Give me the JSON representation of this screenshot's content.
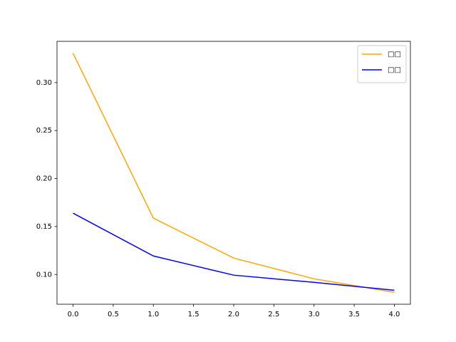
{
  "chart_data": {
    "type": "line",
    "x": [
      0,
      1,
      2,
      3,
      4
    ],
    "series": [
      {
        "name": "□□",
        "color": "orange",
        "values": [
          0.3305,
          0.1587,
          0.1171,
          0.0955,
          0.0814
        ]
      },
      {
        "name": "□□",
        "color": "blue",
        "values": [
          0.1639,
          0.1193,
          0.0993,
          0.0918,
          0.0836
        ]
      }
    ],
    "xlim": [
      -0.2,
      4.2
    ],
    "xticks": [
      {
        "value": 0,
        "label": "0.0"
      },
      {
        "value": 0.5,
        "label": "0.5"
      },
      {
        "value": 1,
        "label": "1.0"
      },
      {
        "value": 1.5,
        "label": "1.5"
      },
      {
        "value": 2,
        "label": "2.0"
      },
      {
        "value": 2.5,
        "label": "2.5"
      },
      {
        "value": 3,
        "label": "3.0"
      },
      {
        "value": 3.5,
        "label": "3.5"
      },
      {
        "value": 4,
        "label": "4.0"
      }
    ],
    "ylim": [
      0.069,
      0.343
    ],
    "yticks": [
      {
        "value": 0.1,
        "label": "0.10"
      },
      {
        "value": 0.15,
        "label": "0.15"
      },
      {
        "value": 0.2,
        "label": "0.20"
      },
      {
        "value": 0.25,
        "label": "0.25"
      },
      {
        "value": 0.3,
        "label": "0.30"
      }
    ],
    "legend": "upper right"
  }
}
